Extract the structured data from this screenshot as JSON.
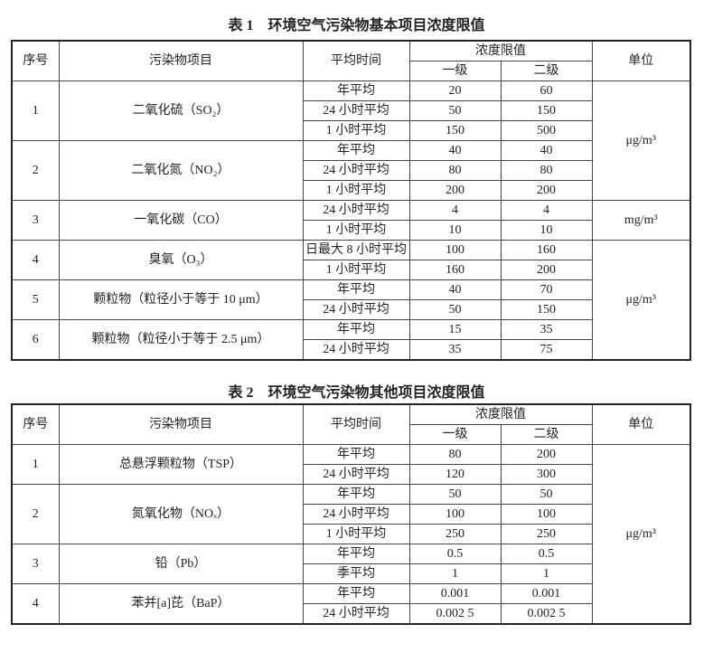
{
  "tables": [
    {
      "title": "表 1　环境空气污染物基本项目浓度限值",
      "headers": {
        "no": "序号",
        "item": "污染物项目",
        "period": "平均时间",
        "limit": "浓度限值",
        "grade1": "一级",
        "grade2": "二级",
        "unit": "单位"
      },
      "groups": [
        {
          "no": "1",
          "item": "二氧化硫（SO₂）",
          "rows": [
            [
              "年平均",
              "20",
              "60"
            ],
            [
              "24 小时平均",
              "50",
              "150"
            ],
            [
              "1 小时平均",
              "150",
              "500"
            ]
          ]
        },
        {
          "no": "2",
          "item": "二氧化氮（NO₂）",
          "rows": [
            [
              "年平均",
              "40",
              "40"
            ],
            [
              "24 小时平均",
              "80",
              "80"
            ],
            [
              "1 小时平均",
              "200",
              "200"
            ]
          ]
        },
        {
          "no": "3",
          "item": "一氧化碳（CO）",
          "rows": [
            [
              "24 小时平均",
              "4",
              "4"
            ],
            [
              "1 小时平均",
              "10",
              "10"
            ]
          ]
        },
        {
          "no": "4",
          "item": "臭氧（O₃）",
          "rows": [
            [
              "日最大 8 小时平均",
              "100",
              "160"
            ],
            [
              "1 小时平均",
              "160",
              "200"
            ]
          ]
        },
        {
          "no": "5",
          "item": "颗粒物（粒径小于等于 10 μm）",
          "rows": [
            [
              "年平均",
              "40",
              "70"
            ],
            [
              "24 小时平均",
              "50",
              "150"
            ]
          ]
        },
        {
          "no": "6",
          "item": "颗粒物（粒径小于等于 2.5 μm）",
          "rows": [
            [
              "年平均",
              "15",
              "35"
            ],
            [
              "24 小时平均",
              "35",
              "75"
            ]
          ]
        }
      ],
      "units": [
        {
          "text": "μg/m³",
          "rows": 6
        },
        {
          "text": "mg/m³",
          "rows": 2
        },
        {
          "text": "μg/m³",
          "rows": 6
        }
      ]
    },
    {
      "title": "表 2　环境空气污染物其他项目浓度限值",
      "headers": {
        "no": "序号",
        "item": "污染物项目",
        "period": "平均时间",
        "limit": "浓度限值",
        "grade1": "一级",
        "grade2": "二级",
        "unit": "单位"
      },
      "groups": [
        {
          "no": "1",
          "item": "总悬浮颗粒物（TSP）",
          "rows": [
            [
              "年平均",
              "80",
              "200"
            ],
            [
              "24 小时平均",
              "120",
              "300"
            ]
          ]
        },
        {
          "no": "2",
          "item": "氮氧化物（NOₓ）",
          "rows": [
            [
              "年平均",
              "50",
              "50"
            ],
            [
              "24 小时平均",
              "100",
              "100"
            ],
            [
              "1 小时平均",
              "250",
              "250"
            ]
          ]
        },
        {
          "no": "3",
          "item": "铅（Pb）",
          "rows": [
            [
              "年平均",
              "0.5",
              "0.5"
            ],
            [
              "季平均",
              "1",
              "1"
            ]
          ]
        },
        {
          "no": "4",
          "item": "苯并[a]芘（BaP）",
          "rows": [
            [
              "年平均",
              "0.001",
              "0.001"
            ],
            [
              "24 小时平均",
              "0.002 5",
              "0.002 5"
            ]
          ]
        }
      ],
      "units": [
        {
          "text": "μg/m³",
          "rows": 9
        }
      ]
    }
  ]
}
